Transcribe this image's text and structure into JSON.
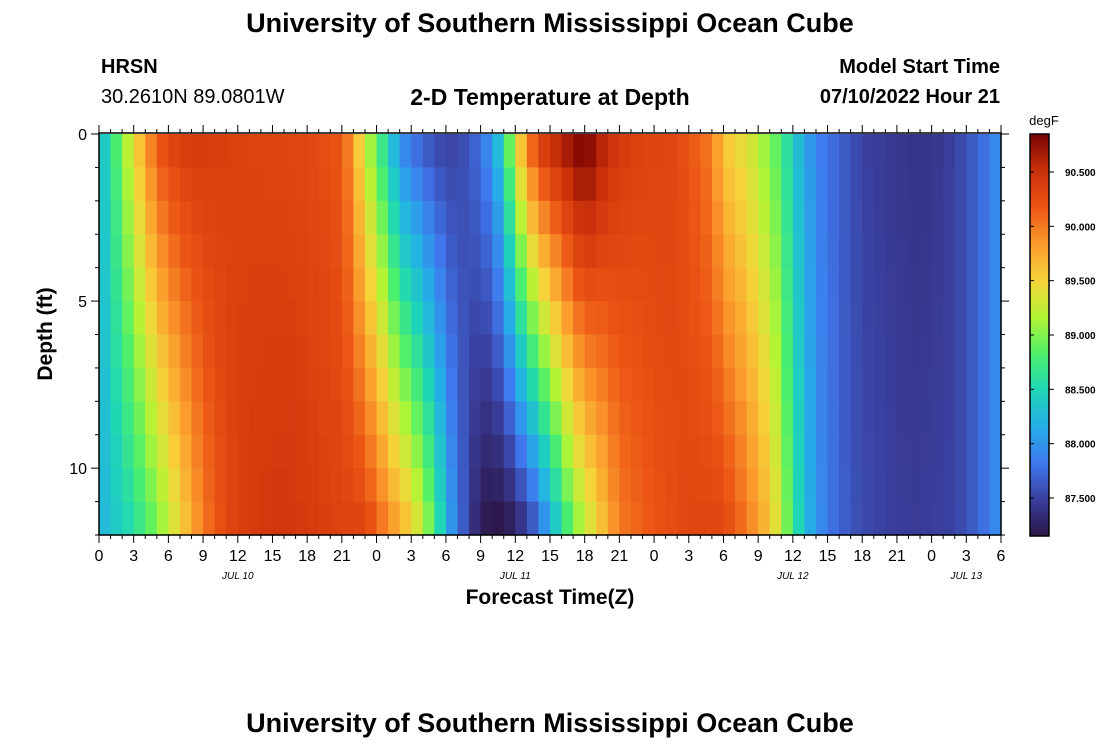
{
  "page": {
    "title_top": "University of Southern Mississippi Ocean Cube",
    "title_bottom": "University of Southern Mississippi Ocean Cube",
    "station": "HRSN",
    "coords": "30.2610N  89.0801W",
    "plot_title": "2-D Temperature at Depth",
    "model_label": "Model Start Time",
    "model_time": "07/10/2022 Hour 21"
  },
  "chart_data": {
    "type": "heatmap",
    "title": "2-D Temperature at Depth",
    "xlabel": "Forecast Time(Z)",
    "ylabel": "Depth (ft)",
    "x_start_hour": 0,
    "x_end_hour": 78,
    "x_hour_step": 1,
    "x_ticks": [
      {
        "h": 0,
        "label": "0"
      },
      {
        "h": 3,
        "label": "3"
      },
      {
        "h": 6,
        "label": "6"
      },
      {
        "h": 9,
        "label": "9"
      },
      {
        "h": 12,
        "label": "12"
      },
      {
        "h": 15,
        "label": "15"
      },
      {
        "h": 18,
        "label": "18"
      },
      {
        "h": 21,
        "label": "21"
      },
      {
        "h": 24,
        "label": "0"
      },
      {
        "h": 27,
        "label": "3"
      },
      {
        "h": 30,
        "label": "6"
      },
      {
        "h": 33,
        "label": "9"
      },
      {
        "h": 36,
        "label": "12"
      },
      {
        "h": 39,
        "label": "15"
      },
      {
        "h": 42,
        "label": "18"
      },
      {
        "h": 45,
        "label": "21"
      },
      {
        "h": 48,
        "label": "0"
      },
      {
        "h": 51,
        "label": "3"
      },
      {
        "h": 54,
        "label": "6"
      },
      {
        "h": 57,
        "label": "9"
      },
      {
        "h": 60,
        "label": "12"
      },
      {
        "h": 63,
        "label": "15"
      },
      {
        "h": 66,
        "label": "18"
      },
      {
        "h": 69,
        "label": "21"
      },
      {
        "h": 72,
        "label": "0"
      },
      {
        "h": 75,
        "label": "3"
      },
      {
        "h": 78,
        "label": "6"
      }
    ],
    "date_labels": [
      {
        "h": 12,
        "label": "JUL 10"
      },
      {
        "h": 36,
        "label": "JUL 11"
      },
      {
        "h": 60,
        "label": "JUL 12"
      },
      {
        "h": 75,
        "label": "JUL 13"
      }
    ],
    "y_ticks": [
      {
        "v": 0,
        "label": "0"
      },
      {
        "v": 5,
        "label": "5"
      },
      {
        "v": 10,
        "label": "10"
      }
    ],
    "ylim": [
      12,
      0
    ],
    "depth_rows": [
      0.5,
      1.5,
      2.5,
      3.5,
      4.5,
      5.5,
      6.5,
      7.5,
      8.5,
      9.5,
      10.5,
      11.5
    ],
    "colorbar": {
      "unit": "degF",
      "min": 87.15,
      "max": 90.85,
      "tick_values": [
        87.5,
        88.0,
        88.5,
        89.0,
        89.5,
        90.0,
        90.5
      ],
      "tick_labels": [
        "87.500",
        "88.000",
        "88.500",
        "89.000",
        "89.500",
        "90.000",
        "90.500"
      ],
      "colors": [
        "#2b1648",
        "#3a3f9e",
        "#3f78ee",
        "#25aee8",
        "#1ed6b6",
        "#4ef06a",
        "#b4f434",
        "#f6d43a",
        "#fb9a2c",
        "#ec5515",
        "#c92f0a",
        "#7a0403"
      ]
    },
    "surface_keypoints": [
      [
        0,
        88.2
      ],
      [
        1,
        88.6
      ],
      [
        2,
        89.0
      ],
      [
        3,
        89.4
      ],
      [
        4,
        89.8
      ],
      [
        5,
        90.1
      ],
      [
        6,
        90.3
      ],
      [
        8,
        90.4
      ],
      [
        12,
        90.35
      ],
      [
        18,
        90.3
      ],
      [
        21,
        90.2
      ],
      [
        22,
        89.8
      ],
      [
        23,
        89.3
      ],
      [
        24,
        88.9
      ],
      [
        25,
        88.5
      ],
      [
        26,
        88.0
      ],
      [
        28,
        87.7
      ],
      [
        30,
        87.5
      ],
      [
        32,
        87.6
      ],
      [
        33,
        87.8
      ],
      [
        34,
        88.0
      ],
      [
        35,
        88.5
      ],
      [
        36,
        89.3
      ],
      [
        37,
        89.9
      ],
      [
        38,
        90.3
      ],
      [
        40,
        90.6
      ],
      [
        42,
        90.85
      ],
      [
        44,
        90.5
      ],
      [
        46,
        90.35
      ],
      [
        50,
        90.3
      ],
      [
        53,
        90.0
      ],
      [
        54,
        89.6
      ],
      [
        56,
        89.4
      ],
      [
        58,
        89.0
      ],
      [
        59,
        88.8
      ],
      [
        60,
        88.4
      ],
      [
        62,
        87.9
      ],
      [
        64,
        87.7
      ],
      [
        66,
        87.5
      ],
      [
        68,
        87.45
      ],
      [
        70,
        87.4
      ],
      [
        72,
        87.4
      ],
      [
        74,
        87.5
      ],
      [
        76,
        87.7
      ],
      [
        78,
        88.0
      ]
    ],
    "bottom_keypoints": [
      [
        0,
        88.2
      ],
      [
        3,
        88.6
      ],
      [
        5,
        89.0
      ],
      [
        7,
        89.5
      ],
      [
        9,
        90.0
      ],
      [
        11,
        90.3
      ],
      [
        13,
        90.4
      ],
      [
        16,
        90.45
      ],
      [
        20,
        90.35
      ],
      [
        23,
        90.3
      ],
      [
        25,
        89.9
      ],
      [
        27,
        89.5
      ],
      [
        29,
        88.8
      ],
      [
        30,
        88.2
      ],
      [
        31,
        87.8
      ],
      [
        32,
        87.5
      ],
      [
        33,
        87.2
      ],
      [
        35,
        87.15
      ],
      [
        37,
        87.5
      ],
      [
        38,
        87.8
      ],
      [
        39,
        88.2
      ],
      [
        40,
        88.6
      ],
      [
        41,
        89.0
      ],
      [
        43,
        89.5
      ],
      [
        45,
        90.0
      ],
      [
        48,
        90.2
      ],
      [
        51,
        90.3
      ],
      [
        54,
        90.3
      ],
      [
        56,
        90.0
      ],
      [
        58,
        89.6
      ],
      [
        59,
        89.2
      ],
      [
        60,
        88.7
      ],
      [
        61,
        88.3
      ],
      [
        62,
        88.0
      ],
      [
        64,
        87.7
      ],
      [
        66,
        87.55
      ],
      [
        70,
        87.45
      ],
      [
        74,
        87.5
      ],
      [
        76,
        87.7
      ],
      [
        78,
        88.0
      ]
    ]
  }
}
